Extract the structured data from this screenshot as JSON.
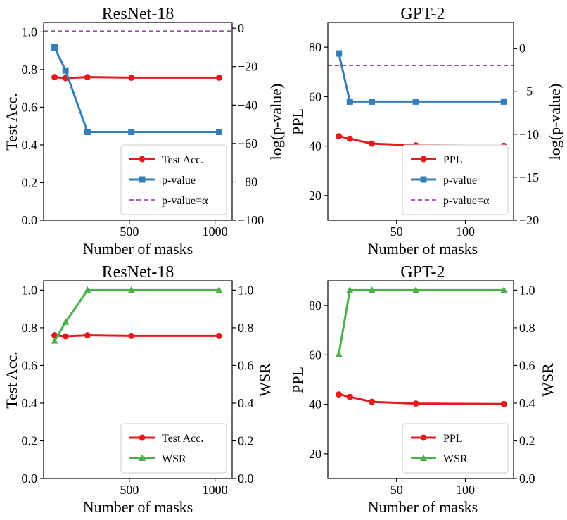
{
  "colors": {
    "acc": "#e41a1c",
    "pval": "#377eb8",
    "alpha": "#984ea3",
    "wsr": "#4daf4a"
  },
  "chart_data": [
    {
      "type": "line",
      "title": "ResNet-18",
      "xlabel": "Number of masks",
      "ylabel": "Test Acc.",
      "ylabel_right": "log(p-value)",
      "xlim": [
        0,
        1100
      ],
      "ylim": [
        0,
        1.05
      ],
      "ylim_right": [
        -100,
        3
      ],
      "xticks": [
        500,
        1000
      ],
      "yticks": [
        0.0,
        0.2,
        0.4,
        0.6,
        0.8,
        1.0
      ],
      "yticks_right": [
        -100,
        -80,
        -60,
        -40,
        -20,
        0
      ],
      "ytick_decimals": 1,
      "ytick_right_decimals": 0,
      "legend_position": "lower-right",
      "series": [
        {
          "name": "Test Acc.",
          "axis": "left",
          "style": "line",
          "marker": "circle",
          "color": "#e41a1c",
          "x": [
            64,
            128,
            256,
            512,
            1024
          ],
          "y": [
            0.76,
            0.755,
            0.76,
            0.757,
            0.757
          ]
        },
        {
          "name": "p-value",
          "axis": "right",
          "style": "line",
          "marker": "square",
          "color": "#377eb8",
          "x": [
            64,
            128,
            256,
            512,
            1024
          ],
          "y": [
            -10,
            -22,
            -54,
            -54,
            -54
          ]
        },
        {
          "name": "p-value=α",
          "axis": "right",
          "style": "hline",
          "dash": true,
          "color": "#984ea3",
          "y": -1.5
        }
      ]
    },
    {
      "type": "line",
      "title": "GPT-2",
      "xlabel": "Number of masks",
      "ylabel": "PPL",
      "ylabel_right": "log(p-value)",
      "xlim": [
        0,
        135
      ],
      "ylim": [
        10,
        90
      ],
      "ylim_right": [
        -20,
        3
      ],
      "xticks": [
        50,
        100
      ],
      "yticks": [
        20,
        40,
        60,
        80
      ],
      "yticks_right": [
        -20,
        -15,
        -10,
        -5,
        0
      ],
      "ytick_decimals": 0,
      "ytick_right_decimals": 0,
      "legend_position": "lower-right",
      "series": [
        {
          "name": "PPL",
          "axis": "left",
          "style": "line",
          "marker": "circle",
          "color": "#e41a1c",
          "x": [
            8,
            16,
            32,
            64,
            128
          ],
          "y": [
            44,
            43,
            41,
            40.3,
            40.1
          ]
        },
        {
          "name": "p-value",
          "axis": "right",
          "style": "line",
          "marker": "square",
          "color": "#377eb8",
          "x": [
            8,
            16,
            32,
            64,
            128
          ],
          "y": [
            -0.6,
            -6.2,
            -6.2,
            -6.2,
            -6.2
          ]
        },
        {
          "name": "p-value=α",
          "axis": "right",
          "style": "hline",
          "dash": true,
          "color": "#984ea3",
          "y": -2.0
        }
      ]
    },
    {
      "type": "line",
      "title": "ResNet-18",
      "xlabel": "Number of masks",
      "ylabel": "Test Acc.",
      "ylabel_right": "WSR",
      "xlim": [
        0,
        1100
      ],
      "ylim": [
        0,
        1.05
      ],
      "ylim_right": [
        0,
        1.05
      ],
      "xticks": [
        500,
        1000
      ],
      "yticks": [
        0.0,
        0.2,
        0.4,
        0.6,
        0.8,
        1.0
      ],
      "yticks_right": [
        0.0,
        0.2,
        0.4,
        0.6,
        0.8,
        1.0
      ],
      "ytick_decimals": 1,
      "ytick_right_decimals": 1,
      "legend_position": "lower-right",
      "series": [
        {
          "name": "Test Acc.",
          "axis": "left",
          "style": "line",
          "marker": "circle",
          "color": "#e41a1c",
          "x": [
            64,
            128,
            256,
            512,
            1024
          ],
          "y": [
            0.76,
            0.755,
            0.76,
            0.757,
            0.757
          ]
        },
        {
          "name": "WSR",
          "axis": "right",
          "style": "line",
          "marker": "triangle",
          "color": "#4daf4a",
          "x": [
            64,
            128,
            256,
            512,
            1024
          ],
          "y": [
            0.73,
            0.83,
            1.0,
            1.0,
            1.0
          ]
        }
      ]
    },
    {
      "type": "line",
      "title": "GPT-2",
      "xlabel": "Number of masks",
      "ylabel": "PPL",
      "ylabel_right": "WSR",
      "xlim": [
        0,
        135
      ],
      "ylim": [
        10,
        90
      ],
      "ylim_right": [
        0,
        1.05
      ],
      "xticks": [
        50,
        100
      ],
      "yticks": [
        20,
        40,
        60,
        80
      ],
      "yticks_right": [
        0.0,
        0.2,
        0.4,
        0.6,
        0.8,
        1.0
      ],
      "ytick_decimals": 0,
      "ytick_right_decimals": 1,
      "legend_position": "lower-right",
      "series": [
        {
          "name": "PPL",
          "axis": "left",
          "style": "line",
          "marker": "circle",
          "color": "#e41a1c",
          "x": [
            8,
            16,
            32,
            64,
            128
          ],
          "y": [
            44,
            43,
            41,
            40.3,
            40.1
          ]
        },
        {
          "name": "WSR",
          "axis": "right",
          "style": "line",
          "marker": "triangle",
          "color": "#4daf4a",
          "x": [
            8,
            16,
            32,
            64,
            128
          ],
          "y": [
            0.66,
            1.0,
            1.0,
            1.0,
            1.0
          ]
        }
      ]
    }
  ]
}
